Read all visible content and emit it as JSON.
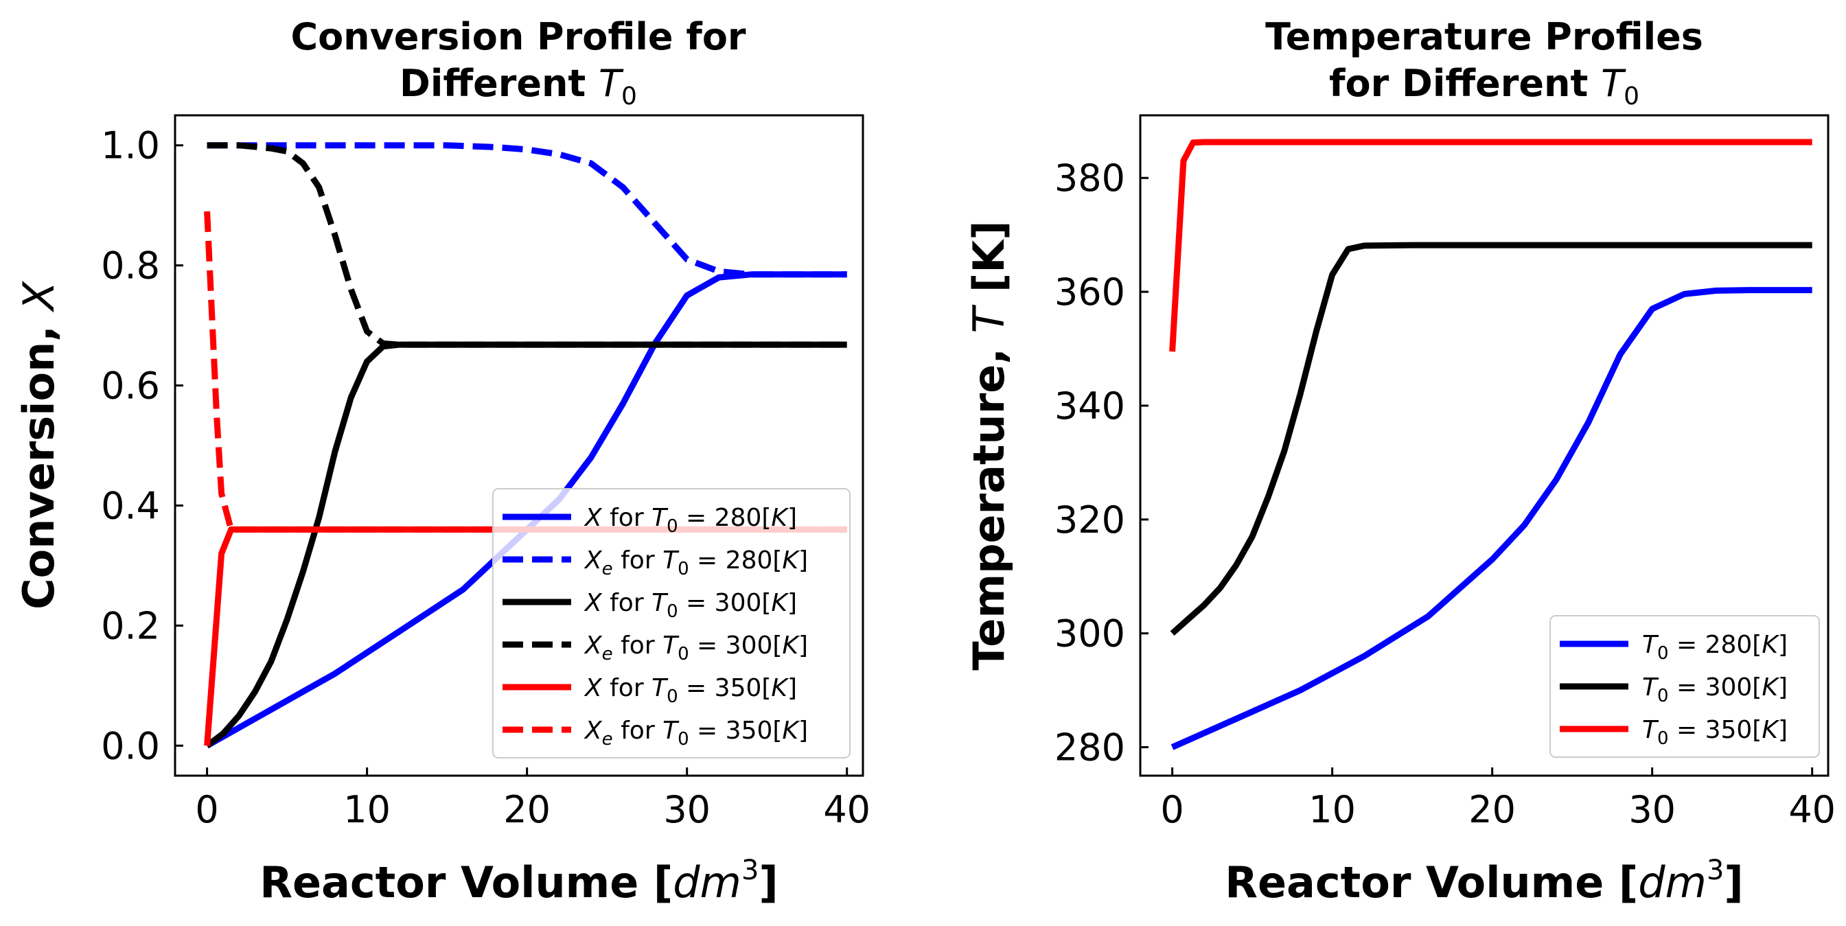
{
  "chart_data": [
    {
      "type": "line",
      "title_line1": "Conversion Profile for",
      "title_line2": "Different T0",
      "xlabel": "Reactor Volume [dm3]",
      "ylabel": "Conversion, X",
      "xlim": [
        -2,
        41
      ],
      "ylim": [
        -0.05,
        1.05
      ],
      "xticks": [
        "0",
        "10",
        "20",
        "30",
        "40"
      ],
      "yticks": [
        "0.0",
        "0.2",
        "0.4",
        "0.6",
        "0.8",
        "1.0"
      ],
      "legend_position": "lower right",
      "series": [
        {
          "name": "X for T0 = 280[K]",
          "color": "#0000ff",
          "dash": "solid",
          "x": [
            0,
            4,
            8,
            12,
            16,
            20,
            22,
            24,
            26,
            28,
            30,
            32,
            34,
            36,
            40
          ],
          "y": [
            0.0,
            0.06,
            0.12,
            0.19,
            0.26,
            0.36,
            0.41,
            0.48,
            0.57,
            0.67,
            0.75,
            0.78,
            0.785,
            0.785,
            0.785
          ]
        },
        {
          "name": "Xe for T0 = 280[K]",
          "color": "#0000ff",
          "dash": "dashed",
          "x": [
            0,
            5,
            10,
            15,
            18,
            20,
            22,
            24,
            26,
            28,
            30,
            32,
            34,
            36,
            40
          ],
          "y": [
            1.0,
            1.0,
            1.0,
            1.0,
            0.997,
            0.993,
            0.985,
            0.97,
            0.93,
            0.87,
            0.81,
            0.79,
            0.785,
            0.785,
            0.785
          ]
        },
        {
          "name": "X for T0 = 300[K]",
          "color": "#000000",
          "dash": "solid",
          "x": [
            0,
            1,
            2,
            3,
            4,
            5,
            6,
            7,
            8,
            9,
            10,
            11,
            12,
            15,
            20,
            30,
            40
          ],
          "y": [
            0.0,
            0.02,
            0.05,
            0.09,
            0.14,
            0.21,
            0.29,
            0.38,
            0.49,
            0.58,
            0.64,
            0.665,
            0.668,
            0.668,
            0.668,
            0.668,
            0.668
          ]
        },
        {
          "name": "Xe for T0 = 300[K]",
          "color": "#000000",
          "dash": "dashed",
          "x": [
            0,
            2,
            4,
            5,
            6,
            7,
            8,
            9,
            10,
            11,
            12,
            15,
            20,
            30,
            40
          ],
          "y": [
            1.0,
            1.0,
            0.995,
            0.99,
            0.97,
            0.93,
            0.85,
            0.76,
            0.69,
            0.67,
            0.668,
            0.668,
            0.668,
            0.668,
            0.668
          ]
        },
        {
          "name": "X for T0 = 350[K]",
          "color": "#ff0000",
          "dash": "solid",
          "x": [
            0,
            0.9,
            1.5,
            3,
            10,
            20,
            30,
            40
          ],
          "y": [
            0.0,
            0.32,
            0.36,
            0.36,
            0.36,
            0.36,
            0.36,
            0.36
          ]
        },
        {
          "name": "Xe for T0 = 350[K]",
          "color": "#ff0000",
          "dash": "dashed",
          "x": [
            0,
            0.3,
            0.6,
            0.9,
            1.5,
            3,
            10,
            20,
            30,
            40
          ],
          "y": [
            0.89,
            0.72,
            0.55,
            0.42,
            0.36,
            0.36,
            0.36,
            0.36,
            0.36,
            0.36
          ]
        }
      ],
      "legend": [
        {
          "sym": "X",
          "sub": "",
          "text": " for T",
          "rest": " = 280[K]"
        },
        {
          "sym": "X",
          "sub": "e",
          "text": " for T",
          "rest": " = 280[K]"
        },
        {
          "sym": "X",
          "sub": "",
          "text": " for T",
          "rest": " = 300[K]"
        },
        {
          "sym": "X",
          "sub": "e",
          "text": " for T",
          "rest": " = 300[K]"
        },
        {
          "sym": "X",
          "sub": "",
          "text": " for T",
          "rest": " = 350[K]"
        },
        {
          "sym": "X",
          "sub": "e",
          "text": " for T",
          "rest": " = 350[K]"
        }
      ]
    },
    {
      "type": "line",
      "title_line1": "Temperature Profiles",
      "title_line2": "for Different T0",
      "xlabel": "Reactor Volume [dm3]",
      "ylabel": "Temperature, T [K]",
      "xlim": [
        -2,
        41
      ],
      "ylim": [
        275,
        391
      ],
      "xticks": [
        "0",
        "10",
        "20",
        "30",
        "40"
      ],
      "yticks": [
        "280",
        "300",
        "320",
        "340",
        "360",
        "380"
      ],
      "legend_position": "lower right",
      "series": [
        {
          "name": "T0 = 280[K]",
          "color": "#0000ff",
          "dash": "solid",
          "x": [
            0,
            4,
            8,
            12,
            16,
            20,
            22,
            24,
            26,
            28,
            30,
            32,
            34,
            36,
            40
          ],
          "y": [
            280,
            285,
            290,
            296,
            303,
            313,
            319,
            327,
            337,
            349,
            357,
            359.6,
            360.2,
            360.3,
            360.3
          ]
        },
        {
          "name": "T0 = 300[K]",
          "color": "#000000",
          "dash": "solid",
          "x": [
            0,
            1,
            2,
            3,
            4,
            5,
            6,
            7,
            8,
            9,
            10,
            11,
            12,
            15,
            20,
            30,
            40
          ],
          "y": [
            300,
            302.5,
            305,
            308,
            312,
            317,
            324,
            332,
            342,
            353,
            363,
            367.5,
            368.1,
            368.2,
            368.2,
            368.2,
            368.2
          ]
        },
        {
          "name": "T0 = 350[K]",
          "color": "#ff0000",
          "dash": "solid",
          "x": [
            0,
            0.7,
            1.3,
            2,
            5,
            10,
            20,
            30,
            40
          ],
          "y": [
            349.5,
            383,
            386.2,
            386.3,
            386.3,
            386.3,
            386.3,
            386.3,
            386.3
          ]
        }
      ],
      "legend": [
        {
          "sym": "",
          "sub": "",
          "text": "T",
          "rest": " = 280[K]"
        },
        {
          "sym": "",
          "sub": "",
          "text": "T",
          "rest": " = 300[K]"
        },
        {
          "sym": "",
          "sub": "",
          "text": "T",
          "rest": " = 350[K]"
        }
      ]
    }
  ]
}
